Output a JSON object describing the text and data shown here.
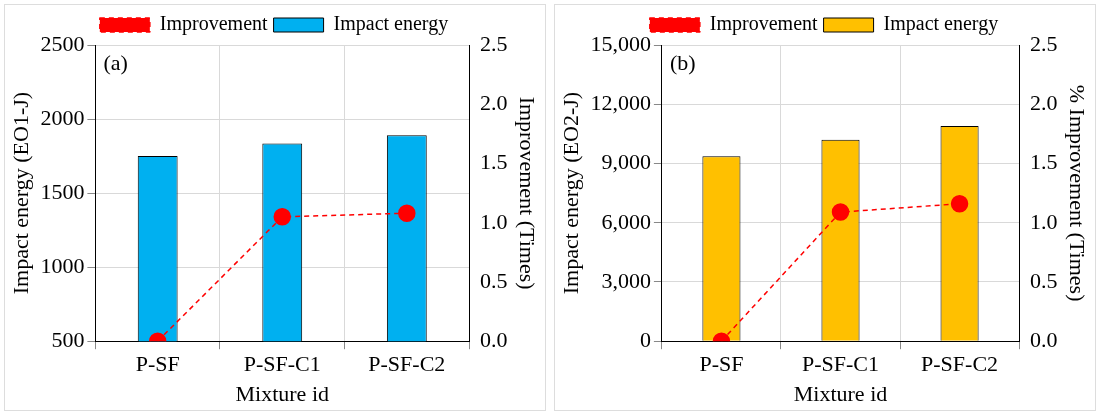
{
  "chart_data": [
    {
      "type": "bar",
      "annotations": [
        "(a)"
      ],
      "xlabel": "Mixture id",
      "ylabel": "Impact energy (EO1-J)",
      "y2label": "Improvement (Times)",
      "categories": [
        "P-SF",
        "P-SF-C1",
        "P-SF-C2"
      ],
      "series": [
        {
          "name": "Impact energy",
          "color": "#00b0f0",
          "values": [
            1750,
            1835,
            1890
          ]
        },
        {
          "name": "Improvement",
          "type": "line",
          "axis": "y2",
          "color": "#ff0000",
          "values": [
            0,
            1.05,
            1.08
          ],
          "marker": "circle",
          "line_style": "dashed"
        }
      ],
      "ylim": [
        500,
        2500
      ],
      "yticks": [
        500,
        1000,
        1500,
        2000,
        2500
      ],
      "y2lim": [
        0,
        2.5
      ],
      "y2ticks": [
        {
          "value": 0,
          "label": "0.0"
        },
        {
          "value": 0.5,
          "label": "0.5"
        },
        {
          "value": 1,
          "label": "1.0"
        },
        {
          "value": 1.5,
          "label": "1.5"
        },
        {
          "value": 2,
          "label": "2.0"
        },
        {
          "value": 2.5,
          "label": "2.5"
        }
      ],
      "grid": true,
      "legend": "top"
    },
    {
      "type": "bar",
      "annotations": [
        "(b)"
      ],
      "xlabel": "Mixture id",
      "ylabel": "Impact energy (EO2-J)",
      "y2label": "% Improvement (Times)",
      "categories": [
        "P-SF",
        "P-SF-C1",
        "P-SF-C2"
      ],
      "series": [
        {
          "name": "Impact energy",
          "color": "#ffc000",
          "values": [
            9370,
            10200,
            10900
          ]
        },
        {
          "name": "Improvement",
          "type": "line",
          "axis": "y2",
          "color": "#ff0000",
          "values": [
            0,
            1.09,
            1.16
          ],
          "marker": "circle",
          "line_style": "dashed"
        }
      ],
      "ylim": [
        0,
        15000
      ],
      "yticks": [
        0,
        {
          "value": 3000,
          "label": "3,000"
        },
        {
          "value": 6000,
          "label": "6,000"
        },
        {
          "value": 9000,
          "label": "9,000"
        },
        {
          "value": 12000,
          "label": "12,000"
        },
        {
          "value": 15000,
          "label": "15,000"
        }
      ],
      "y2lim": [
        0,
        2.5
      ],
      "y2ticks": [
        {
          "value": 0,
          "label": "0.0"
        },
        {
          "value": 0.5,
          "label": "0.5"
        },
        {
          "value": 1,
          "label": "1.0"
        },
        {
          "value": 1.5,
          "label": "1.5"
        },
        {
          "value": 2,
          "label": "2.0"
        },
        {
          "value": 2.5,
          "label": "2.5"
        }
      ],
      "grid": true,
      "legend": "top"
    }
  ]
}
